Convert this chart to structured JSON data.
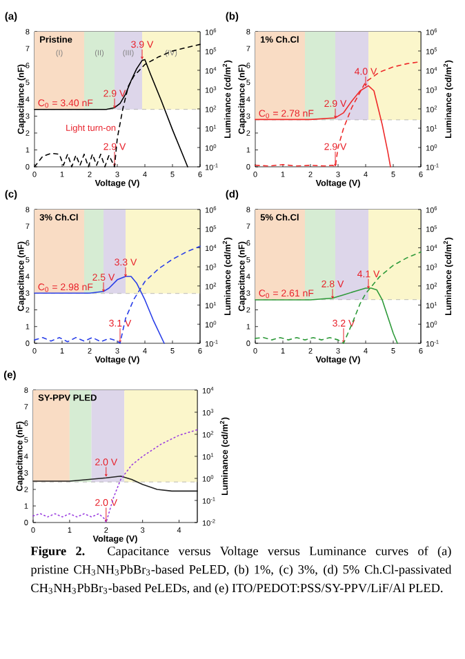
{
  "chart_data": [
    {
      "type": "line",
      "title": "(a)",
      "subtitle": "Pristine",
      "xlabel": "Voltage (V)",
      "ylabel": "Capacitance (nF)",
      "y2label": "Luminance (cd/m$^{2}$)",
      "xlim": [
        0,
        6
      ],
      "xticks": [
        0,
        1,
        2,
        3,
        4,
        5,
        6
      ],
      "ylim": [
        0,
        8
      ],
      "yticks": [
        0,
        1,
        2,
        3,
        4,
        5,
        6,
        7,
        8
      ],
      "y2lim": [
        0.1,
        1000000
      ],
      "y2ticks": [
        {
          "value": 0.1,
          "label": "10$^{-1}$"
        },
        {
          "value": 1,
          "label": "10$^{0}$"
        },
        {
          "value": 10,
          "label": "10$^{1}$"
        },
        {
          "value": 100,
          "label": "10$^{2}$"
        },
        {
          "value": 1000,
          "label": "10$^{3}$"
        },
        {
          "value": 10000,
          "label": "10$^{4}$"
        },
        {
          "value": 100000,
          "label": "10$^{5}$"
        },
        {
          "value": 1000000,
          "label": "10$^{6}$"
        }
      ],
      "log": "y2",
      "bands": [
        {
          "axis": "x",
          "from": 0,
          "to": 1.8,
          "label": "(I)",
          "color": "#f9dcc4"
        },
        {
          "axis": "x",
          "from": 1.8,
          "to": 2.9,
          "label": "(II)",
          "color": "#d6ecd3"
        },
        {
          "axis": "x",
          "from": 2.9,
          "to": 3.9,
          "label": "(III)",
          "color": "#ddd6ea"
        },
        {
          "axis": "x",
          "from": 3.9,
          "to": 6,
          "label": "(IV)",
          "color": "#fbf6cb"
        }
      ],
      "ref_lines": [
        {
          "axis": "y",
          "value": 3.4,
          "label": "C$_{0}$ = 3.40 nF",
          "color": "#aaaaaa",
          "line_style": "dashed"
        }
      ],
      "annotations": [
        {
          "text": "2.9 V",
          "x": 2.9,
          "y": 3.45
        },
        {
          "text": "3.9 V",
          "x": 3.9,
          "y": 6.35
        },
        "Light turn-on",
        {
          "text": "2.9 V",
          "x": 2.9,
          "y": 0
        }
      ],
      "series": [
        {
          "color": "#000000",
          "line_style": "solid",
          "x": [
            0,
            1,
            2,
            2.6,
            2.9,
            3.1,
            3.3,
            3.5,
            3.7,
            3.9,
            4.0,
            4.2,
            4.6,
            5.0,
            5.4,
            5.55
          ],
          "values": [
            3.4,
            3.4,
            3.4,
            3.4,
            3.5,
            3.75,
            4.3,
            5.1,
            5.8,
            6.3,
            6.35,
            5.5,
            3.9,
            2.2,
            0.6,
            0
          ]
        },
        {
          "color": "#000000",
          "line_style": "dashed",
          "axis": "y2",
          "x": [
            0,
            0.3,
            0.6,
            0.9,
            1.05,
            1.2,
            1.35,
            1.5,
            1.65,
            1.8,
            1.95,
            2.1,
            2.25,
            2.4,
            2.55,
            2.7,
            2.9,
            3.0,
            3.2,
            3.4,
            3.6,
            4.0,
            4.5,
            5.0,
            5.5,
            6.0
          ],
          "values": [
            0.1,
            0.35,
            0.5,
            0.45,
            0.12,
            0.45,
            0.1,
            0.4,
            0.12,
            0.45,
            0.1,
            0.45,
            0.12,
            0.45,
            0.1,
            0.4,
            0.1,
            3,
            100,
            1500,
            5000,
            20000,
            50000,
            100000,
            150000,
            220000
          ]
        }
      ]
    },
    {
      "type": "line",
      "title": "(b)",
      "subtitle": "1% Ch.Cl",
      "xlabel": "Voltage (V)",
      "ylabel": "Capacitance (nF)",
      "y2label": "Luminance (cd/m$^{2}$)",
      "xlim": [
        0,
        6
      ],
      "xticks": [
        0,
        1,
        2,
        3,
        4,
        5,
        6
      ],
      "ylim": [
        0,
        8
      ],
      "yticks": [
        0,
        1,
        2,
        3,
        4,
        5,
        6,
        7,
        8
      ],
      "y2lim": [
        0.1,
        1000000
      ],
      "y2ticks": [
        {
          "value": 0.1,
          "label": "10$^{-1}$"
        },
        {
          "value": 1,
          "label": "10$^{0}$"
        },
        {
          "value": 10,
          "label": "10$^{1}$"
        },
        {
          "value": 100,
          "label": "10$^{2}$"
        },
        {
          "value": 1000,
          "label": "10$^{3}$"
        },
        {
          "value": 10000,
          "label": "10$^{4}$"
        },
        {
          "value": 100000,
          "label": "10$^{5}$"
        },
        {
          "value": 1000000,
          "label": "10$^{6}$"
        }
      ],
      "log": "y2",
      "bands": [
        {
          "axis": "x",
          "from": 0,
          "to": 1.8,
          "color": "#f9dcc4"
        },
        {
          "axis": "x",
          "from": 1.8,
          "to": 2.9,
          "color": "#d6ecd3"
        },
        {
          "axis": "x",
          "from": 2.9,
          "to": 4.1,
          "color": "#ddd6ea"
        },
        {
          "axis": "x",
          "from": 4.1,
          "to": 6,
          "color": "#fbf6cb"
        }
      ],
      "ref_lines": [
        {
          "axis": "y",
          "value": 2.78,
          "label": "C$_{0}$ = 2.78 nF",
          "color": "#aaaaaa",
          "line_style": "dashed"
        }
      ],
      "annotations": [
        {
          "text": "2.9 V",
          "x": 2.9,
          "y": 2.85
        },
        {
          "text": "4.0 V",
          "x": 4.0,
          "y": 4.75
        },
        {
          "text": "2.9 V",
          "x": 2.9,
          "y": 0
        }
      ],
      "series": [
        {
          "color": "#ee2a2a",
          "line_style": "solid",
          "x": [
            0,
            2.0,
            2.9,
            3.2,
            3.5,
            3.8,
            4.1,
            4.3,
            4.6,
            4.8,
            4.9
          ],
          "values": [
            2.8,
            2.8,
            2.9,
            3.2,
            3.9,
            4.5,
            4.8,
            4.5,
            2.5,
            0.9,
            0
          ]
        },
        {
          "color": "#ee2a2a",
          "line_style": "dashed",
          "axis": "y2",
          "x": [
            0,
            0.5,
            1.0,
            1.5,
            2.0,
            2.5,
            2.8,
            2.9,
            3.0,
            3.2,
            3.5,
            4.0,
            4.5,
            5.0,
            5.5,
            6.0
          ],
          "values": [
            0.12,
            0.11,
            0.13,
            0.11,
            0.12,
            0.11,
            0.12,
            0.1,
            1,
            10,
            120,
            2500,
            8000,
            15000,
            22000,
            28000
          ]
        }
      ]
    },
    {
      "type": "line",
      "title": "(c)",
      "subtitle": "3% Ch.Cl",
      "xlabel": "Voltage (V)",
      "ylabel": "Capacitance (nF)",
      "y2label": "Luminance (cd/m$^{2}$)",
      "xlim": [
        0,
        6
      ],
      "xticks": [
        0,
        1,
        2,
        3,
        4,
        5,
        6
      ],
      "ylim": [
        0,
        8
      ],
      "yticks": [
        0,
        1,
        2,
        3,
        4,
        5,
        6,
        7,
        8
      ],
      "y2lim": [
        0.1,
        1000000
      ],
      "y2ticks": [
        {
          "value": 0.1,
          "label": "10$^{-1}$"
        },
        {
          "value": 1,
          "label": "10$^{0}$"
        },
        {
          "value": 10,
          "label": "10$^{1}$"
        },
        {
          "value": 100,
          "label": "10$^{2}$"
        },
        {
          "value": 1000,
          "label": "10$^{3}$"
        },
        {
          "value": 10000,
          "label": "10$^{4}$"
        },
        {
          "value": 100000,
          "label": "10$^{5}$"
        },
        {
          "value": 1000000,
          "label": "10$^{6}$"
        }
      ],
      "log": "y2",
      "bands": [
        {
          "axis": "x",
          "from": 0,
          "to": 1.8,
          "color": "#f9dcc4"
        },
        {
          "axis": "x",
          "from": 1.8,
          "to": 2.5,
          "color": "#d6ecd3"
        },
        {
          "axis": "x",
          "from": 2.5,
          "to": 3.3,
          "color": "#ddd6ea"
        },
        {
          "axis": "x",
          "from": 3.3,
          "to": 6,
          "color": "#fbf6cb"
        }
      ],
      "ref_lines": [
        {
          "axis": "y",
          "value": 2.98,
          "label": "C$_{0}$ = 2.98 nF",
          "color": "#aaaaaa",
          "line_style": "dashed"
        }
      ],
      "annotations": [
        {
          "text": "2.5 V",
          "x": 2.5,
          "y": 3.05
        },
        {
          "text": "3.3 V",
          "x": 3.3,
          "y": 3.95
        },
        {
          "text": "3.1 V",
          "x": 3.1,
          "y": 0
        }
      ],
      "series": [
        {
          "color": "#2a3fe8",
          "line_style": "solid",
          "x": [
            0,
            2.0,
            2.5,
            2.7,
            3.0,
            3.3,
            3.5,
            3.7,
            4.0,
            4.3,
            4.7
          ],
          "values": [
            3.0,
            3.0,
            3.1,
            3.3,
            3.8,
            4.0,
            4.0,
            3.6,
            2.6,
            1.4,
            0
          ]
        },
        {
          "color": "#2a3fe8",
          "line_style": "dashed",
          "axis": "y2",
          "x": [
            0,
            0.3,
            0.6,
            0.9,
            1.2,
            1.5,
            1.8,
            2.1,
            2.4,
            2.7,
            3.0,
            3.1,
            3.3,
            3.6,
            4.0,
            4.5,
            5.0,
            5.5,
            6.0
          ],
          "values": [
            0.15,
            0.2,
            0.13,
            0.2,
            0.12,
            0.2,
            0.13,
            0.2,
            0.12,
            0.18,
            0.13,
            0.1,
            2,
            20,
            170,
            800,
            2500,
            6000,
            12000
          ]
        }
      ]
    },
    {
      "type": "line",
      "title": "(d)",
      "subtitle": "5% Ch.Cl",
      "xlabel": "Voltage (V)",
      "ylabel": "Capacitance (nF)",
      "y2label": "Luminance (cd/m$^{2}$)",
      "xlim": [
        0,
        6
      ],
      "xticks": [
        0,
        1,
        2,
        3,
        4,
        5,
        6
      ],
      "ylim": [
        0,
        8
      ],
      "yticks": [
        0,
        1,
        2,
        3,
        4,
        5,
        6,
        7,
        8
      ],
      "y2lim": [
        0.1,
        1000000
      ],
      "y2ticks": [
        {
          "value": 0.1,
          "label": "10$^{-1}$"
        },
        {
          "value": 1,
          "label": "10$^{0}$"
        },
        {
          "value": 10,
          "label": "10$^{1}$"
        },
        {
          "value": 100,
          "label": "10$^{2}$"
        },
        {
          "value": 1000,
          "label": "10$^{3}$"
        },
        {
          "value": 10000,
          "label": "10$^{4}$"
        },
        {
          "value": 100000,
          "label": "10$^{5}$"
        },
        {
          "value": 1000000,
          "label": "10$^{6}$"
        }
      ],
      "log": "y2",
      "bands": [
        {
          "axis": "x",
          "from": 0,
          "to": 1.8,
          "color": "#f9dcc4"
        },
        {
          "axis": "x",
          "from": 1.8,
          "to": 2.9,
          "color": "#d6ecd3"
        },
        {
          "axis": "x",
          "from": 2.9,
          "to": 4.1,
          "color": "#ddd6ea"
        },
        {
          "axis": "x",
          "from": 4.1,
          "to": 6,
          "color": "#fbf6cb"
        }
      ],
      "ref_lines": [
        {
          "axis": "y",
          "value": 2.61,
          "label": "C$_{0}$ = 2.61 nF",
          "color": "#aaaaaa",
          "line_style": "dashed"
        }
      ],
      "annotations": [
        {
          "text": "2.8 V",
          "x": 2.8,
          "y": 2.65
        },
        {
          "text": "4.1 V",
          "x": 4.1,
          "y": 3.25
        },
        {
          "text": "3.2 V",
          "x": 3.2,
          "y": 0
        }
      ],
      "series": [
        {
          "color": "#2e9a3a",
          "line_style": "solid",
          "x": [
            0,
            2.0,
            2.8,
            3.2,
            3.6,
            4.0,
            4.2,
            4.4,
            4.6,
            4.8,
            5.0,
            5.15
          ],
          "values": [
            2.6,
            2.6,
            2.7,
            2.9,
            3.1,
            3.3,
            3.3,
            3.2,
            2.6,
            1.6,
            0.6,
            0
          ]
        },
        {
          "color": "#2e9a3a",
          "line_style": "dashed",
          "axis": "y2",
          "x": [
            0,
            0.3,
            0.6,
            0.9,
            1.2,
            1.5,
            1.8,
            2.1,
            2.4,
            2.7,
            3.0,
            3.2,
            3.5,
            3.8,
            4.0,
            4.2,
            4.5,
            5.0,
            5.5,
            6.0
          ],
          "values": [
            0.18,
            0.2,
            0.15,
            0.2,
            0.15,
            0.2,
            0.15,
            0.2,
            0.15,
            0.2,
            0.15,
            0.1,
            1,
            12,
            40,
            90,
            300,
            1200,
            3000,
            6000
          ]
        }
      ]
    },
    {
      "type": "line",
      "title": "(e)",
      "subtitle": "SY-PPV PLED",
      "xlabel": "Voltage (V)",
      "ylabel": "Capacitance (nF)",
      "y2label": "Luminance (cd/m$^{2}$)",
      "xlim": [
        0,
        4.5
      ],
      "xticks": [
        0,
        1,
        2,
        3,
        4
      ],
      "ylim": [
        0,
        8
      ],
      "yticks": [
        0,
        1,
        2,
        3,
        4,
        5,
        6,
        7,
        8
      ],
      "y2lim": [
        0.01,
        10000
      ],
      "y2ticks": [
        {
          "value": 0.01,
          "label": "10$^{-2}$"
        },
        {
          "value": 0.1,
          "label": "10$^{-1}$"
        },
        {
          "value": 1,
          "label": "10$^{0}$"
        },
        {
          "value": 10,
          "label": "10$^{1}$"
        },
        {
          "value": 100,
          "label": "10$^{2}$"
        },
        {
          "value": 1000,
          "label": "10$^{3}$"
        },
        {
          "value": 10000,
          "label": "10$^{4}$"
        }
      ],
      "log": "y2",
      "bands": [
        {
          "axis": "x",
          "from": 0,
          "to": 1.0,
          "color": "#f9dcc4"
        },
        {
          "axis": "x",
          "from": 1.0,
          "to": 1.6,
          "color": "#d6ecd3"
        },
        {
          "axis": "x",
          "from": 1.6,
          "to": 2.5,
          "color": "#ddd6ea"
        },
        {
          "axis": "x",
          "from": 2.5,
          "to": 4.5,
          "color": "#fbf6cb"
        }
      ],
      "ref_lines": [
        {
          "axis": "y",
          "value": 2.45,
          "color": "#aaaaaa",
          "line_style": "dashed"
        }
      ],
      "annotations": [
        {
          "text": "2.0 V",
          "x": 2.0,
          "y": 2.75
        },
        {
          "text": "2.0 V",
          "x": 2.0,
          "y": 0
        }
      ],
      "series": [
        {
          "color": "#222222",
          "line_style": "solid",
          "x": [
            0,
            1.0,
            1.5,
            2.0,
            2.4,
            2.7,
            3.0,
            3.4,
            3.8,
            4.5
          ],
          "values": [
            2.5,
            2.5,
            2.6,
            2.7,
            2.8,
            2.6,
            2.3,
            2.0,
            1.9,
            1.9
          ]
        },
        {
          "color": "#9b3fe0",
          "line_style": "dotted",
          "axis": "y2",
          "x": [
            0,
            0.2,
            0.4,
            0.6,
            0.8,
            1.0,
            1.2,
            1.4,
            1.6,
            1.8,
            1.95,
            2.0,
            2.2,
            2.4,
            2.7,
            3.0,
            3.5,
            4.0,
            4.5
          ],
          "values": [
            0.02,
            0.025,
            0.018,
            0.025,
            0.018,
            0.025,
            0.018,
            0.025,
            0.018,
            0.025,
            0.015,
            0.01,
            0.13,
            0.9,
            4,
            10,
            35,
            90,
            160
          ]
        }
      ]
    },
    {
      "type": "other",
      "title": "**Figure 2.** Capacitance versus Voltage versus Luminance curves of (a) pristine CH$_{3}$NH$_{3}$PbBr$_{3}$-based PeLED, (b) 1%, (c) 3%, (d) 5% Ch.Cl-passivated CH$_{3}$NH$_{3}$PbBr$_{3}$-based PeLEDs, and (e) ITO/PEDOT:PSS/SY-PPV/LiF/Al PLED."
    }
  ]
}
